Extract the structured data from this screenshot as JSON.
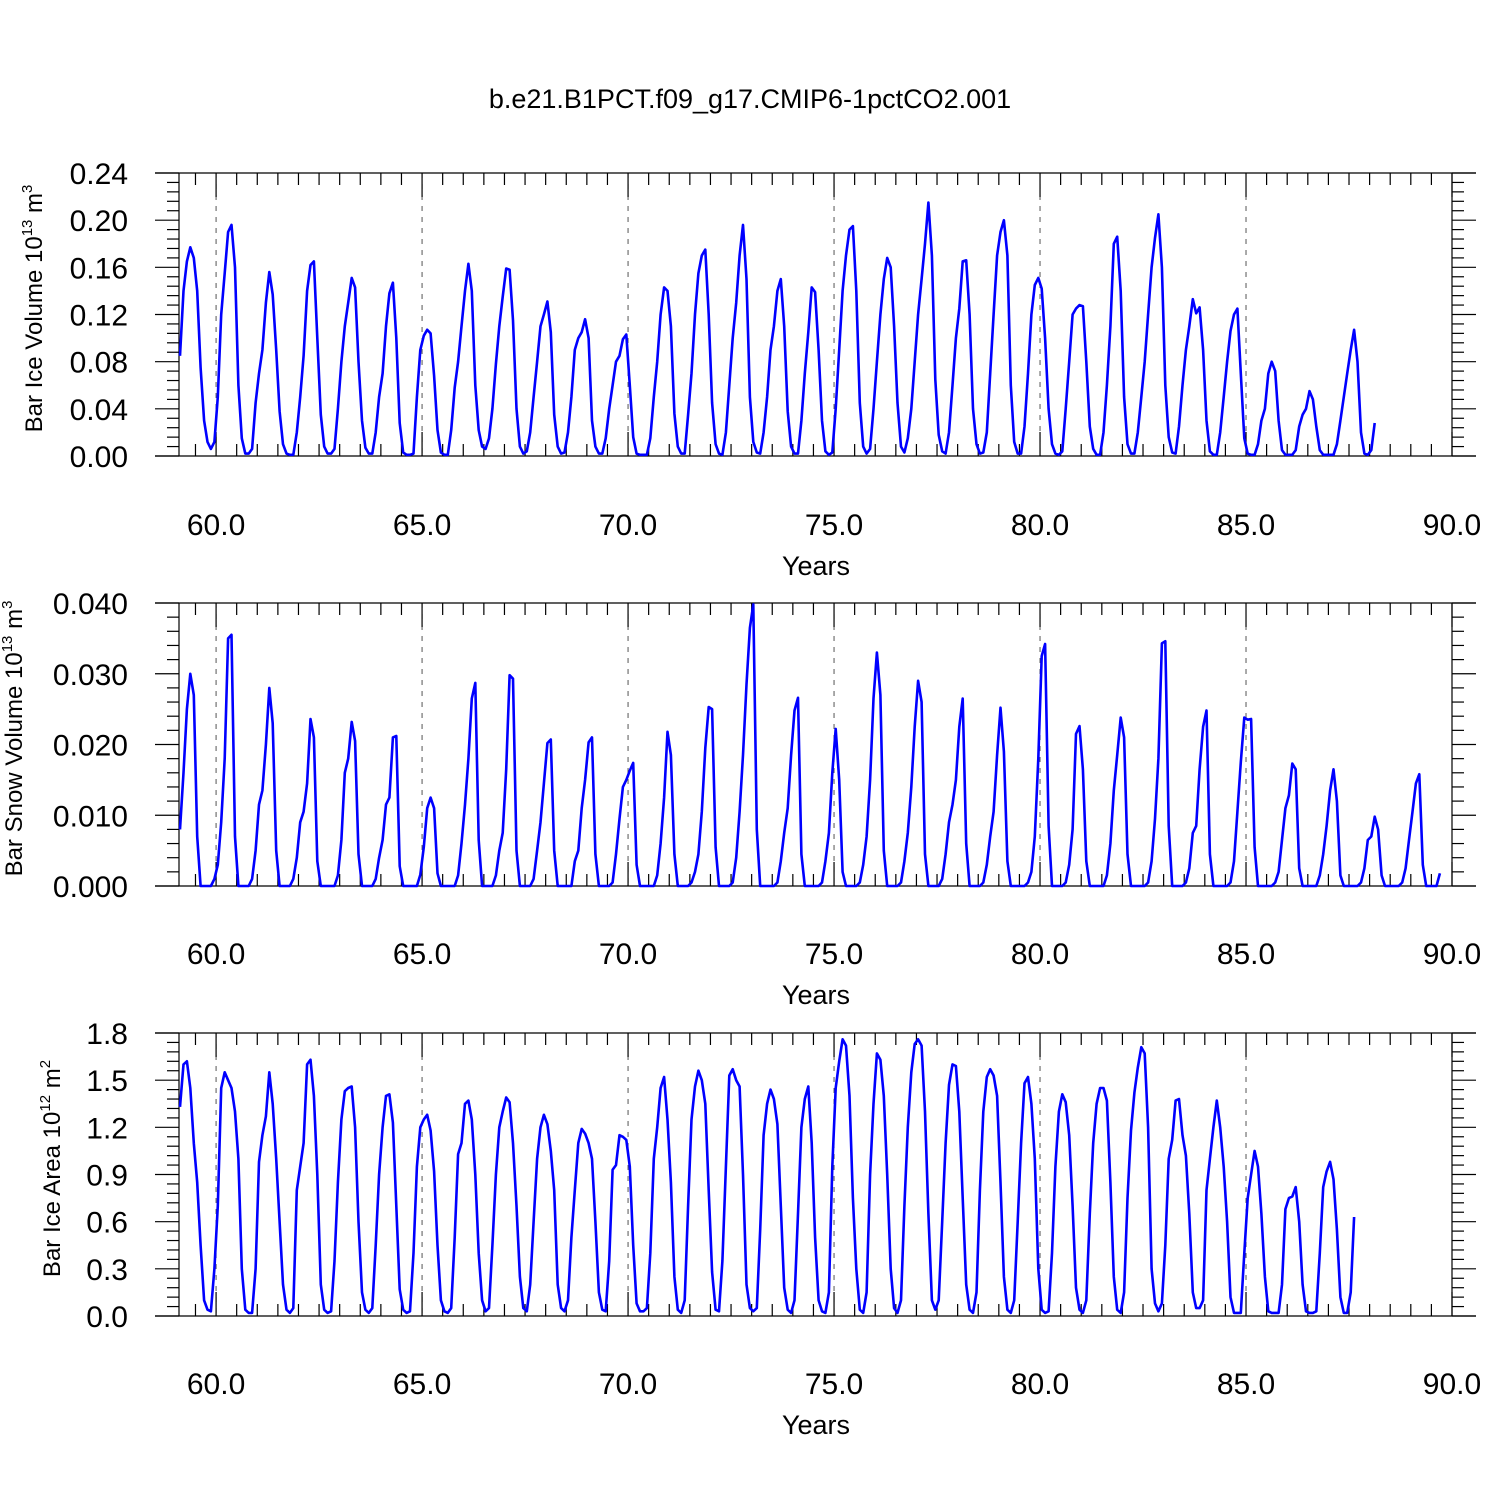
{
  "title": "b.e21.B1PCT.f09_g17.CMIP6-1pctCO2.001",
  "chart_data": [
    {
      "type": "line",
      "id": "ice-volume",
      "xlabel": "Years",
      "ylabel": "Bar Ice Volume 10",
      "ylabel_sup": "13",
      "ylabel_unit": " m",
      "ylabel_unit_sup": "3",
      "xlim": [
        59.1,
        90.0
      ],
      "ylim": [
        0,
        0.24
      ],
      "xticks": [
        60,
        65,
        70,
        75,
        80,
        85,
        90
      ],
      "xtick_labels": [
        "60.0",
        "65.0",
        "70.0",
        "75.0",
        "80.0",
        "85.0",
        "90.0"
      ],
      "yticks": [
        0,
        0.04,
        0.08,
        0.12,
        0.16,
        0.2,
        0.24
      ],
      "ytick_labels": [
        "0.00",
        "0.04",
        "0.08",
        "0.12",
        "0.16",
        "0.20",
        "0.24"
      ],
      "grid": "vertical dashed at major x ticks",
      "color": "#0000ff",
      "x_start": 59.125,
      "x_step": 0.08333,
      "values": [
        0.085,
        0.14,
        0.165,
        0.177,
        0.168,
        0.14,
        0.075,
        0.03,
        0.012,
        0.006,
        0.012,
        0.05,
        0.12,
        0.155,
        0.19,
        0.196,
        0.16,
        0.06,
        0.015,
        0.002,
        0.002,
        0.006,
        0.045,
        0.07,
        0.09,
        0.13,
        0.156,
        0.137,
        0.09,
        0.038,
        0.01,
        0.002,
        0.001,
        0.001,
        0.02,
        0.05,
        0.085,
        0.14,
        0.162,
        0.165,
        0.1,
        0.035,
        0.008,
        0.002,
        0.002,
        0.006,
        0.04,
        0.08,
        0.11,
        0.13,
        0.151,
        0.143,
        0.08,
        0.03,
        0.007,
        0.002,
        0.002,
        0.02,
        0.05,
        0.07,
        0.11,
        0.138,
        0.147,
        0.1,
        0.028,
        0.003,
        0.001,
        0.001,
        0.002,
        0.05,
        0.09,
        0.102,
        0.107,
        0.104,
        0.068,
        0.022,
        0.003,
        0.001,
        0.001,
        0.022,
        0.058,
        0.08,
        0.11,
        0.14,
        0.163,
        0.14,
        0.06,
        0.022,
        0.008,
        0.006,
        0.015,
        0.04,
        0.078,
        0.11,
        0.135,
        0.159,
        0.158,
        0.115,
        0.04,
        0.008,
        0.002,
        0.004,
        0.02,
        0.05,
        0.08,
        0.11,
        0.12,
        0.131,
        0.105,
        0.035,
        0.008,
        0.002,
        0.003,
        0.02,
        0.05,
        0.09,
        0.1,
        0.105,
        0.116,
        0.1,
        0.03,
        0.008,
        0.002,
        0.002,
        0.015,
        0.04,
        0.06,
        0.08,
        0.085,
        0.099,
        0.103,
        0.06,
        0.016,
        0.002,
        0.001,
        0.001,
        0.001,
        0.015,
        0.05,
        0.08,
        0.12,
        0.143,
        0.14,
        0.11,
        0.036,
        0.008,
        0.002,
        0.002,
        0.035,
        0.07,
        0.12,
        0.155,
        0.17,
        0.175,
        0.12,
        0.045,
        0.01,
        0.002,
        0.001,
        0.02,
        0.06,
        0.1,
        0.13,
        0.17,
        0.196,
        0.15,
        0.05,
        0.012,
        0.003,
        0.002,
        0.02,
        0.05,
        0.09,
        0.11,
        0.14,
        0.15,
        0.11,
        0.038,
        0.008,
        0.002,
        0.002,
        0.03,
        0.07,
        0.105,
        0.143,
        0.139,
        0.09,
        0.03,
        0.004,
        0.001,
        0.003,
        0.04,
        0.09,
        0.14,
        0.17,
        0.192,
        0.195,
        0.14,
        0.045,
        0.008,
        0.002,
        0.006,
        0.04,
        0.08,
        0.12,
        0.15,
        0.168,
        0.16,
        0.11,
        0.045,
        0.008,
        0.003,
        0.015,
        0.04,
        0.08,
        0.12,
        0.15,
        0.18,
        0.215,
        0.17,
        0.065,
        0.018,
        0.004,
        0.002,
        0.02,
        0.06,
        0.1,
        0.125,
        0.165,
        0.166,
        0.12,
        0.04,
        0.01,
        0.002,
        0.003,
        0.02,
        0.07,
        0.12,
        0.17,
        0.19,
        0.2,
        0.17,
        0.06,
        0.012,
        0.002,
        0.002,
        0.025,
        0.07,
        0.12,
        0.145,
        0.151,
        0.142,
        0.1,
        0.04,
        0.01,
        0.002,
        0.001,
        0.004,
        0.04,
        0.08,
        0.12,
        0.125,
        0.128,
        0.127,
        0.08,
        0.025,
        0.006,
        0.001,
        0.001,
        0.02,
        0.06,
        0.11,
        0.18,
        0.186,
        0.14,
        0.05,
        0.01,
        0.002,
        0.002,
        0.02,
        0.05,
        0.08,
        0.12,
        0.16,
        0.185,
        0.205,
        0.16,
        0.06,
        0.016,
        0.003,
        0.002,
        0.025,
        0.06,
        0.09,
        0.11,
        0.133,
        0.121,
        0.126,
        0.09,
        0.03,
        0.004,
        0.001,
        0.001,
        0.02,
        0.05,
        0.08,
        0.106,
        0.12,
        0.125,
        0.07,
        0.015,
        0.002,
        0.001,
        0.001,
        0.01,
        0.03,
        0.04,
        0.07,
        0.08,
        0.072,
        0.03,
        0.005,
        0.001,
        0.001,
        0.001,
        0.005,
        0.025,
        0.035,
        0.04,
        0.055,
        0.048,
        0.025,
        0.005,
        0.001,
        0.001,
        0.001,
        0.001,
        0.01,
        0.03,
        0.05,
        0.07,
        0.09,
        0.107,
        0.08,
        0.02,
        0.002,
        0.001,
        0.005,
        0.028
      ]
    },
    {
      "type": "line",
      "id": "snow-volume",
      "xlabel": "Years",
      "ylabel": "Bar Snow Volume 10",
      "ylabel_sup": "13",
      "ylabel_unit": " m",
      "ylabel_unit_sup": "3",
      "xlim": [
        59.1,
        90.0
      ],
      "ylim": [
        0,
        0.04
      ],
      "xticks": [
        60,
        65,
        70,
        75,
        80,
        85,
        90
      ],
      "xtick_labels": [
        "60.0",
        "65.0",
        "70.0",
        "75.0",
        "80.0",
        "85.0",
        "90.0"
      ],
      "yticks": [
        0,
        0.01,
        0.02,
        0.03,
        0.04
      ],
      "ytick_labels": [
        "0.000",
        "0.010",
        "0.020",
        "0.030",
        "0.040"
      ],
      "grid": "vertical dashed at major x ticks",
      "color": "#0000ff",
      "x_start": 59.125,
      "x_step": 0.08333,
      "values": [
        0.008,
        0.016,
        0.025,
        0.03,
        0.027,
        0.007,
        0.0,
        0.0,
        0.0,
        0.0,
        0.001,
        0.003,
        0.009,
        0.018,
        0.035,
        0.0355,
        0.007,
        0.0,
        0.0,
        0.0,
        0.0,
        0.001,
        0.005,
        0.0115,
        0.0135,
        0.02,
        0.028,
        0.023,
        0.005,
        0.0,
        0.0,
        0.0,
        0.0,
        0.001,
        0.004,
        0.009,
        0.0105,
        0.0145,
        0.0236,
        0.021,
        0.0035,
        0.0,
        0.0,
        0.0,
        0.0,
        0.0,
        0.0015,
        0.0065,
        0.016,
        0.018,
        0.0232,
        0.0205,
        0.0045,
        0.0,
        0.0,
        0.0,
        0.0,
        0.001,
        0.004,
        0.0065,
        0.0115,
        0.0125,
        0.021,
        0.0212,
        0.0028,
        0.0,
        0.0,
        0.0,
        0.0,
        0.0,
        0.0016,
        0.0055,
        0.011,
        0.0125,
        0.011,
        0.0018,
        0.0,
        0.0,
        0.0,
        0.0,
        0.0,
        0.0015,
        0.006,
        0.0115,
        0.018,
        0.0265,
        0.0287,
        0.0065,
        0.0,
        0.0,
        0.0,
        0.0,
        0.0015,
        0.005,
        0.0075,
        0.0165,
        0.0298,
        0.0293,
        0.005,
        0.0,
        0.0,
        0.0,
        0.0,
        0.001,
        0.005,
        0.009,
        0.0145,
        0.0202,
        0.0207,
        0.005,
        0.0,
        0.0,
        0.0,
        0.0,
        0.0,
        0.0035,
        0.005,
        0.011,
        0.015,
        0.0203,
        0.021,
        0.0045,
        0.0,
        0.0,
        0.0,
        0.0,
        0.0005,
        0.0045,
        0.0095,
        0.014,
        0.015,
        0.0163,
        0.0174,
        0.003,
        0.0,
        0.0,
        0.0,
        0.0,
        0.0,
        0.0015,
        0.006,
        0.0125,
        0.0218,
        0.0185,
        0.0045,
        0.0,
        0.0,
        0.0,
        0.0,
        0.0005,
        0.002,
        0.0045,
        0.0105,
        0.0195,
        0.0253,
        0.025,
        0.0055,
        0.0,
        0.0,
        0.0,
        0.0,
        0.0005,
        0.004,
        0.0105,
        0.0185,
        0.0285,
        0.0365,
        0.0398,
        0.008,
        0.0,
        0.0,
        0.0,
        0.0,
        0.0,
        0.0005,
        0.0035,
        0.0075,
        0.011,
        0.0185,
        0.0248,
        0.0266,
        0.0045,
        0.0,
        0.0,
        0.0,
        0.0,
        0.0,
        0.0005,
        0.0035,
        0.0075,
        0.016,
        0.0222,
        0.015,
        0.002,
        0.0,
        0.0,
        0.0,
        0.0,
        0.0005,
        0.003,
        0.007,
        0.015,
        0.0265,
        0.033,
        0.027,
        0.005,
        0.0,
        0.0,
        0.0,
        0.0,
        0.0005,
        0.0035,
        0.0075,
        0.014,
        0.0225,
        0.029,
        0.026,
        0.0045,
        0.0,
        0.0,
        0.0,
        0.0,
        0.001,
        0.0045,
        0.009,
        0.0115,
        0.015,
        0.0225,
        0.0265,
        0.006,
        0.0,
        0.0,
        0.0,
        0.0,
        0.0005,
        0.003,
        0.007,
        0.0105,
        0.0185,
        0.0252,
        0.019,
        0.0035,
        0.0,
        0.0,
        0.0,
        0.0,
        0.0,
        0.0005,
        0.002,
        0.007,
        0.018,
        0.0325,
        0.0342,
        0.0085,
        0.0,
        0.0,
        0.0,
        0.0,
        0.0005,
        0.003,
        0.008,
        0.0215,
        0.0226,
        0.0165,
        0.0035,
        0.0,
        0.0,
        0.0,
        0.0,
        0.0,
        0.0015,
        0.006,
        0.0135,
        0.0185,
        0.0238,
        0.021,
        0.0045,
        0.0,
        0.0,
        0.0,
        0.0,
        0.0,
        0.0005,
        0.0035,
        0.0095,
        0.018,
        0.0343,
        0.0346,
        0.0085,
        0.0,
        0.0,
        0.0,
        0.0,
        0.0005,
        0.0025,
        0.0075,
        0.0085,
        0.0165,
        0.0225,
        0.0248,
        0.0045,
        0.0,
        0.0,
        0.0,
        0.0,
        0.0,
        0.0005,
        0.0035,
        0.0105,
        0.0175,
        0.0238,
        0.0235,
        0.0236,
        0.0055,
        0.0,
        0.0,
        0.0,
        0.0,
        0.0,
        0.0005,
        0.002,
        0.0065,
        0.011,
        0.0128,
        0.0173,
        0.0165,
        0.0025,
        0.0,
        0.0,
        0.0,
        0.0,
        0.0,
        0.0015,
        0.0045,
        0.0085,
        0.0135,
        0.0165,
        0.012,
        0.0015,
        0.0,
        0.0,
        0.0,
        0.0,
        0.0,
        0.0005,
        0.0025,
        0.0065,
        0.007,
        0.0098,
        0.008,
        0.0015,
        0.0,
        0.0,
        0.0,
        0.0,
        0.0,
        0.0005,
        0.0025,
        0.0065,
        0.0105,
        0.0145,
        0.0158,
        0.003,
        0.0,
        0.0,
        0.0,
        0.0,
        0.0018
      ]
    },
    {
      "type": "line",
      "id": "ice-area",
      "xlabel": "Years",
      "ylabel": "Bar Ice Area 10",
      "ylabel_sup": "12",
      "ylabel_unit": " m",
      "ylabel_unit_sup": "2",
      "xlim": [
        59.1,
        90.0
      ],
      "ylim": [
        0,
        1.8
      ],
      "xticks": [
        60,
        65,
        70,
        75,
        80,
        85,
        90
      ],
      "xtick_labels": [
        "60.0",
        "65.0",
        "70.0",
        "75.0",
        "80.0",
        "85.0",
        "90.0"
      ],
      "yticks": [
        0,
        0.3,
        0.6,
        0.9,
        1.2,
        1.5,
        1.8
      ],
      "ytick_labels": [
        "0.0",
        "0.3",
        "0.6",
        "0.9",
        "1.2",
        "1.5",
        "1.8"
      ],
      "grid": "vertical dashed at major x ticks",
      "color": "#0000ff",
      "x_start": 59.125,
      "x_step": 0.08333,
      "values": [
        1.33,
        1.6,
        1.62,
        1.45,
        1.1,
        0.85,
        0.45,
        0.1,
        0.04,
        0.03,
        0.3,
        0.7,
        1.45,
        1.55,
        1.5,
        1.45,
        1.3,
        1.0,
        0.3,
        0.04,
        0.02,
        0.02,
        0.3,
        0.98,
        1.15,
        1.27,
        1.55,
        1.35,
        1.0,
        0.6,
        0.2,
        0.04,
        0.02,
        0.05,
        0.8,
        0.95,
        1.1,
        1.6,
        1.63,
        1.4,
        0.9,
        0.2,
        0.04,
        0.02,
        0.03,
        0.35,
        0.85,
        1.25,
        1.43,
        1.45,
        1.46,
        1.2,
        0.6,
        0.15,
        0.04,
        0.02,
        0.05,
        0.45,
        0.9,
        1.2,
        1.4,
        1.41,
        1.23,
        0.7,
        0.17,
        0.04,
        0.02,
        0.03,
        0.4,
        0.95,
        1.2,
        1.25,
        1.28,
        1.18,
        0.92,
        0.45,
        0.1,
        0.03,
        0.02,
        0.05,
        0.5,
        1.03,
        1.1,
        1.35,
        1.37,
        1.25,
        0.9,
        0.4,
        0.1,
        0.03,
        0.05,
        0.45,
        0.9,
        1.2,
        1.3,
        1.39,
        1.36,
        1.1,
        0.7,
        0.25,
        0.05,
        0.03,
        0.2,
        0.6,
        1.0,
        1.2,
        1.28,
        1.22,
        1.05,
        0.8,
        0.2,
        0.05,
        0.03,
        0.1,
        0.5,
        0.8,
        1.1,
        1.19,
        1.16,
        1.1,
        1.0,
        0.6,
        0.15,
        0.04,
        0.03,
        0.35,
        0.93,
        0.96,
        1.15,
        1.14,
        1.12,
        0.95,
        0.45,
        0.08,
        0.03,
        0.03,
        0.05,
        0.4,
        1.0,
        1.2,
        1.45,
        1.52,
        1.25,
        0.85,
        0.25,
        0.04,
        0.02,
        0.1,
        0.7,
        1.25,
        1.46,
        1.56,
        1.5,
        1.35,
        0.8,
        0.28,
        0.04,
        0.03,
        0.35,
        0.95,
        1.53,
        1.57,
        1.5,
        1.46,
        0.9,
        0.2,
        0.05,
        0.03,
        0.05,
        0.55,
        1.15,
        1.35,
        1.44,
        1.38,
        1.22,
        0.7,
        0.18,
        0.04,
        0.02,
        0.1,
        0.65,
        1.2,
        1.38,
        1.46,
        1.1,
        0.5,
        0.1,
        0.03,
        0.02,
        0.15,
        0.95,
        1.45,
        1.62,
        1.76,
        1.72,
        1.4,
        0.75,
        0.3,
        0.04,
        0.02,
        0.15,
        0.9,
        1.35,
        1.67,
        1.63,
        1.4,
        0.9,
        0.3,
        0.05,
        0.02,
        0.1,
        0.7,
        1.2,
        1.55,
        1.73,
        1.76,
        1.72,
        1.3,
        0.65,
        0.1,
        0.04,
        0.1,
        0.6,
        1.1,
        1.47,
        1.6,
        1.59,
        1.3,
        0.75,
        0.2,
        0.04,
        0.02,
        0.15,
        0.8,
        1.3,
        1.52,
        1.57,
        1.53,
        1.4,
        0.85,
        0.25,
        0.04,
        0.02,
        0.1,
        0.6,
        1.1,
        1.48,
        1.52,
        1.35,
        1.0,
        0.3,
        0.04,
        0.02,
        0.03,
        0.4,
        0.95,
        1.3,
        1.41,
        1.36,
        1.15,
        0.7,
        0.18,
        0.04,
        0.02,
        0.1,
        0.65,
        1.1,
        1.35,
        1.45,
        1.45,
        1.37,
        0.85,
        0.25,
        0.04,
        0.02,
        0.15,
        0.75,
        1.18,
        1.42,
        1.58,
        1.71,
        1.67,
        1.2,
        0.3,
        0.08,
        0.03,
        0.08,
        0.45,
        1.0,
        1.12,
        1.37,
        1.38,
        1.15,
        1.02,
        0.65,
        0.15,
        0.05,
        0.05,
        0.1,
        0.8,
        1.0,
        1.2,
        1.37,
        1.2,
        0.95,
        0.6,
        0.12,
        0.02,
        0.02,
        0.02,
        0.4,
        0.75,
        0.9,
        1.05,
        0.95,
        0.65,
        0.25,
        0.03,
        0.02,
        0.02,
        0.02,
        0.2,
        0.68,
        0.75,
        0.76,
        0.82,
        0.6,
        0.2,
        0.03,
        0.02,
        0.02,
        0.03,
        0.4,
        0.82,
        0.92,
        0.98,
        0.87,
        0.55,
        0.12,
        0.02,
        0.02,
        0.15,
        0.63
      ]
    }
  ]
}
